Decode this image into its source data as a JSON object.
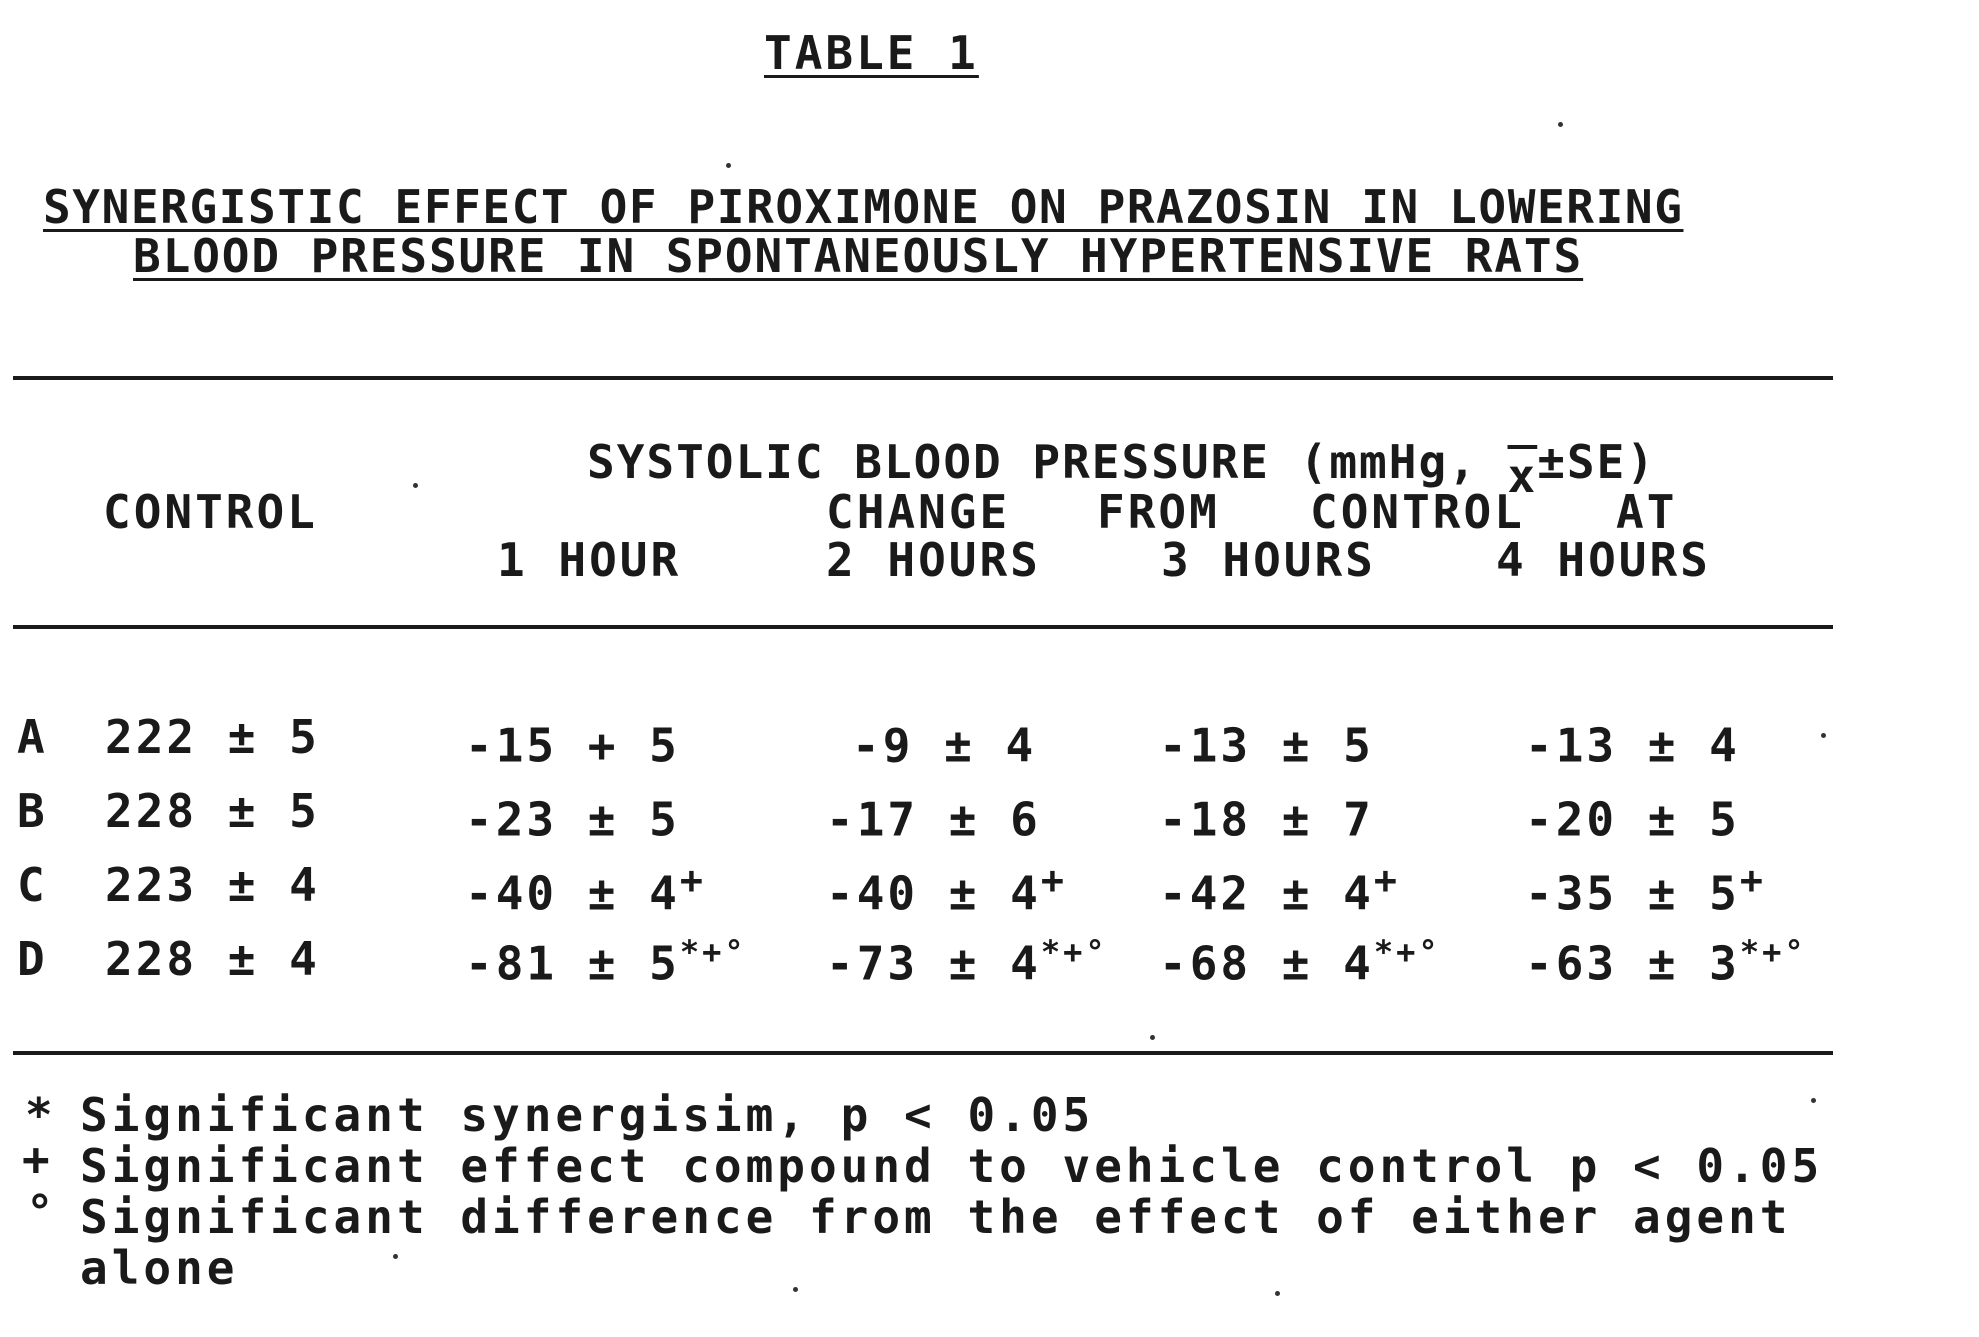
{
  "table_label": "TABLE 1",
  "title": {
    "line1": "SYNERGISTIC EFFECT OF PIROXIMONE ON PRAZOSIN IN LOWERING",
    "line2": "BLOOD PRESSURE IN SPONTANEOUSLY HYPERTENSIVE RATS"
  },
  "header": {
    "control": "CONTROL",
    "super_heading": "SYSTOLIC BLOOD PRESSURE (mmHg, ",
    "xbar": "x",
    "super_heading_end": "±SE)",
    "change_words": [
      "CHANGE",
      "FROM",
      "CONTROL",
      "AT"
    ],
    "columns": [
      "1 HOUR",
      "2 HOURS",
      "3 HOURS",
      "4 HOURS"
    ]
  },
  "rows": [
    {
      "group": "A",
      "control": "222 ± 5",
      "h1": "-15 + 5",
      "h2": "-9 ± 4",
      "h3": "-13 ± 5",
      "h4": "-13 ± 4",
      "h1_mark": "",
      "h2_mark": "",
      "h3_mark": "",
      "h4_mark": ""
    },
    {
      "group": "B",
      "control": "228 ± 5",
      "h1": "-23 ± 5",
      "h2": "-17 ± 6",
      "h3": "-18 ± 7",
      "h4": "-20 ± 5",
      "h1_mark": "",
      "h2_mark": "",
      "h3_mark": "",
      "h4_mark": ""
    },
    {
      "group": "C",
      "control": "223 ± 4",
      "h1": "-40 ± 4",
      "h2": "-40 ± 4",
      "h3": "-42 ± 4",
      "h4": "-35 ± 5",
      "h1_mark": "+",
      "h2_mark": "+",
      "h3_mark": "+",
      "h4_mark": "+"
    },
    {
      "group": "D",
      "control": "228 ± 4",
      "h1": "-81 ± 5",
      "h2": "-73 ± 4",
      "h3": "-68 ± 4",
      "h4": "-63 ± 3",
      "h1_mark": "*+°",
      "h2_mark": "*+°",
      "h3_mark": "*+°",
      "h4_mark": "*+°"
    }
  ],
  "footnotes": [
    {
      "symbol": "*",
      "text": "Significant synergisim, p < 0.05"
    },
    {
      "symbol": "+",
      "text": "Significant effect compound to vehicle control p < 0.05"
    },
    {
      "symbol": "°",
      "text": "Significant difference from the effect of either agent"
    },
    {
      "symbol": "",
      "text": "alone"
    }
  ]
}
